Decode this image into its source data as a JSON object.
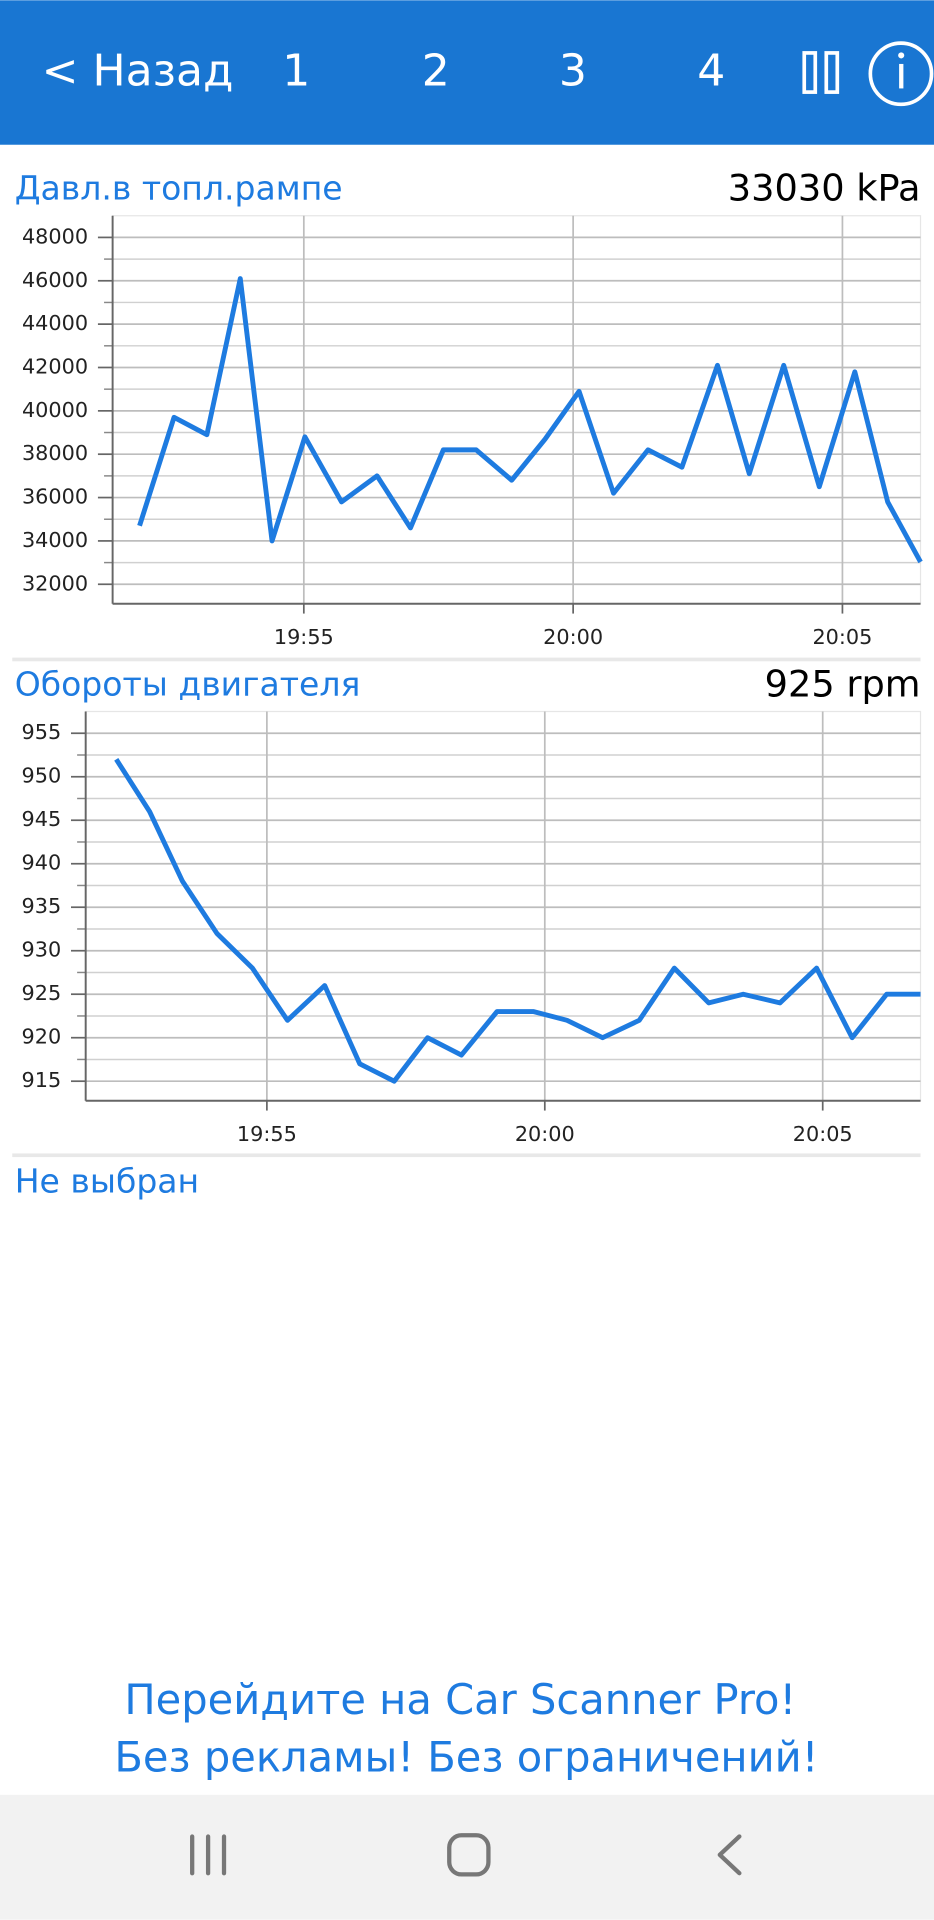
{
  "header": {
    "back": "< Назад",
    "tabs": [
      "1",
      "2",
      "3",
      "4"
    ]
  },
  "chart_data": [
    {
      "type": "line",
      "title": "Давл.в топл.рампе",
      "value_label": "33030 kPa",
      "x": [
        1191.95,
        1192.59,
        1193.2,
        1193.82,
        1194.41,
        1195.02,
        1195.7,
        1196.36,
        1196.98,
        1197.59,
        1198.2,
        1198.86,
        1199.48,
        1200.11,
        1200.75,
        1201.39,
        1202.02,
        1202.68,
        1203.27,
        1203.91,
        1204.57,
        1205.23,
        1205.84,
        1206.45
      ],
      "series": [
        {
          "name": "Давл.в топл.рампе",
          "color": "#1e7be0",
          "values": [
            34700,
            39700,
            38900,
            46100,
            34000,
            38800,
            35800,
            37000,
            34600,
            38200,
            38200,
            36800,
            38700,
            40900,
            36200,
            38200,
            37400,
            42100,
            37100,
            42100,
            36500,
            41800,
            35800,
            33030
          ]
        }
      ],
      "xlim": [
        1191.45,
        1206.45
      ],
      "xticks": [
        {
          "value": 1195,
          "label": "19:55"
        },
        {
          "value": 1200,
          "label": "20:00"
        },
        {
          "value": 1205,
          "label": "20:05"
        }
      ],
      "ylim": [
        31100,
        49000
      ],
      "yticks": [
        32000,
        34000,
        36000,
        38000,
        40000,
        42000,
        44000,
        46000,
        48000
      ],
      "minor_yticks": [
        33000,
        35000,
        37000,
        39000,
        41000,
        43000,
        45000,
        47000
      ],
      "grid": true
    },
    {
      "type": "line",
      "title": "Обороты двигателя",
      "value_label": "925 rpm",
      "x": [
        1192.29,
        1192.89,
        1193.48,
        1194.1,
        1194.74,
        1195.37,
        1196.04,
        1196.67,
        1197.29,
        1197.89,
        1198.5,
        1199.14,
        1199.8,
        1200.4,
        1201.04,
        1201.7,
        1202.33,
        1202.95,
        1203.57,
        1204.23,
        1204.89,
        1205.53,
        1206.15,
        1206.76
      ],
      "series": [
        {
          "name": "Обороты двигателя",
          "color": "#1e7be0",
          "values": [
            952,
            946,
            938,
            932,
            928,
            922,
            926,
            917,
            915,
            920,
            918,
            923,
            923,
            922,
            920,
            922,
            928,
            924,
            925,
            924,
            928,
            920,
            925,
            925
          ]
        }
      ],
      "xlim": [
        1191.74,
        1206.76
      ],
      "xticks": [
        {
          "value": 1195,
          "label": "19:55"
        },
        {
          "value": 1200,
          "label": "20:00"
        },
        {
          "value": 1205,
          "label": "20:05"
        }
      ],
      "ylim": [
        912.75,
        957.5
      ],
      "yticks": [
        915,
        920,
        925,
        930,
        935,
        940,
        945,
        950,
        955
      ],
      "minor_yticks": [
        917.5,
        922.5,
        927.5,
        932.5,
        937.5,
        942.5,
        947.5,
        952.5
      ],
      "grid": true
    }
  ],
  "empty_slot": "Не выбран",
  "promo": [
    "Перейдите на Car Scanner Pro!",
    "Без рекламы! Без ограничений!"
  ]
}
